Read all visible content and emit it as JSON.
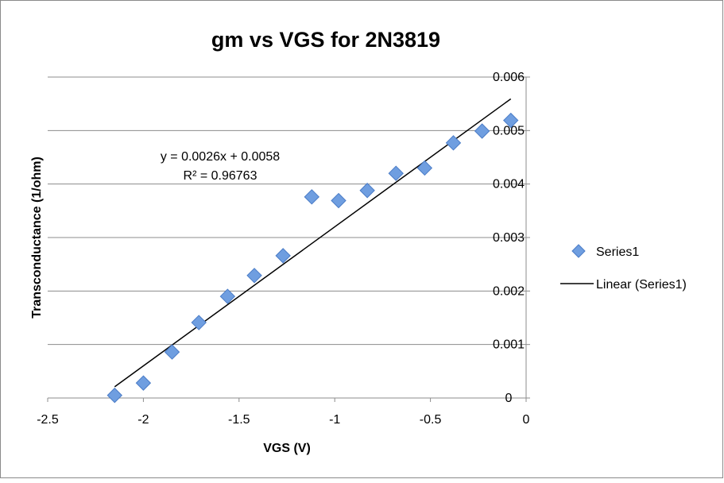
{
  "chart_data": {
    "type": "scatter",
    "title": "gm vs VGS for 2N3819",
    "xlabel": "VGS (V)",
    "ylabel": "Transconductance (1/ohm)",
    "xlim": [
      -2.5,
      0
    ],
    "ylim": [
      0,
      0.006
    ],
    "x_ticks": [
      "-2.5",
      "-2",
      "-1.5",
      "-1",
      "-0.5",
      "0"
    ],
    "y_ticks": [
      "0",
      "0.001",
      "0.002",
      "0.003",
      "0.004",
      "0.005",
      "0.006"
    ],
    "grid": "horizontal",
    "legend_position": "right",
    "series": [
      {
        "name": "Series1",
        "marker": "diamond",
        "color": "#6f9ee0",
        "x": [
          -2.15,
          -2.0,
          -1.85,
          -1.71,
          -1.56,
          -1.42,
          -1.27,
          -1.12,
          -0.98,
          -0.83,
          -0.68,
          -0.53,
          -0.38,
          -0.23,
          -0.08
        ],
        "y": [
          5e-05,
          0.00028,
          0.00086,
          0.00141,
          0.0019,
          0.00229,
          0.00266,
          0.00376,
          0.00369,
          0.00388,
          0.0042,
          0.0043,
          0.00477,
          0.00499,
          0.00519
        ]
      }
    ],
    "trendline": {
      "name": "Linear (Series1)",
      "type": "linear",
      "slope": 0.0026,
      "intercept": 0.0058,
      "x_range": [
        -2.15,
        -0.08
      ],
      "color": "#000000",
      "equation": "y = 0.0026x + 0.0058",
      "r_squared": "R² = 0.96763"
    }
  }
}
